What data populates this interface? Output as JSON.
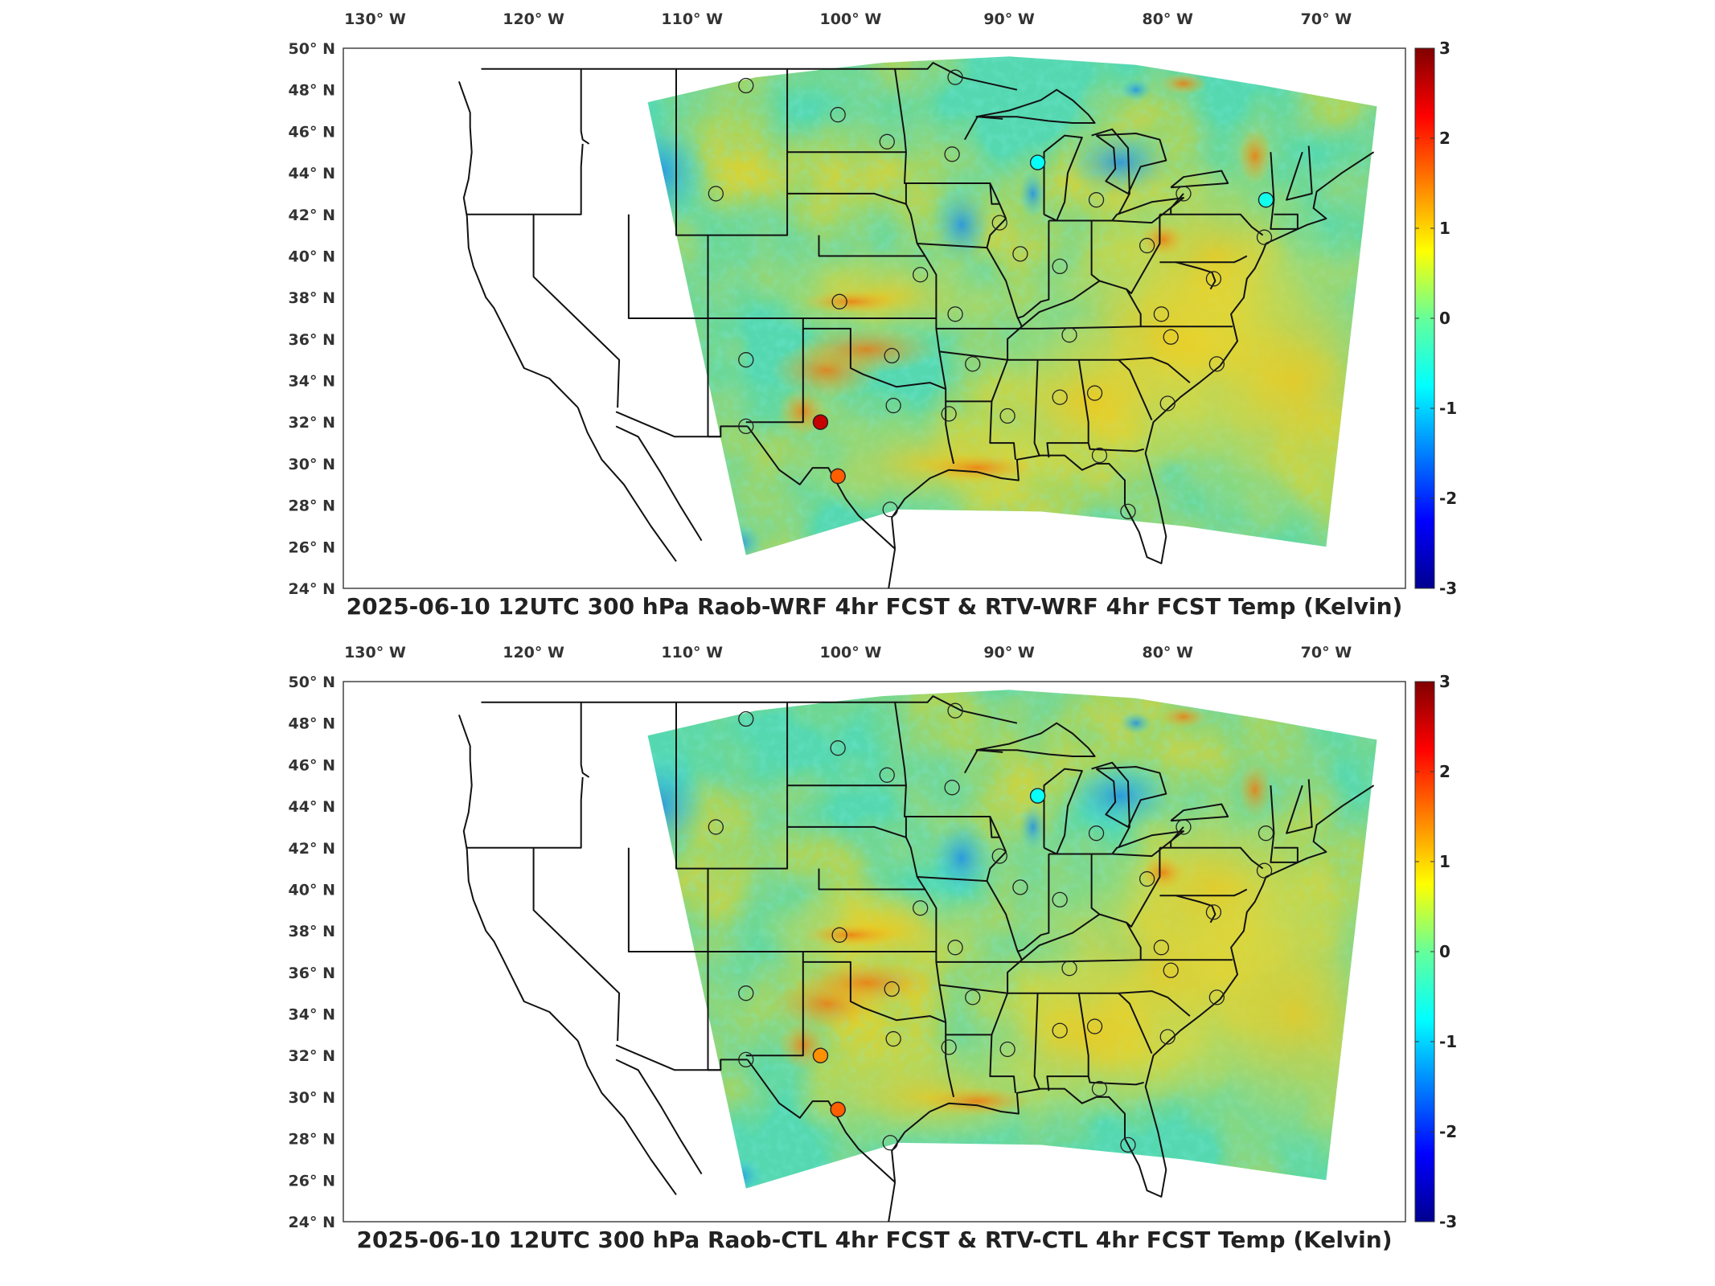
{
  "panels": [
    {
      "title": "2025-06-10 12UTC 300 hPa Raob-WRF 4hr FCST & RTV-WRF 4hr FCST Temp (Kelvin)",
      "lon_labels": [
        "130",
        "120",
        "110",
        "100",
        "90",
        "80",
        "70"
      ],
      "lat_labels": [
        "50",
        "48",
        "46",
        "44",
        "42",
        "40",
        "38",
        "36",
        "34",
        "32",
        "30",
        "28",
        "26",
        "24"
      ],
      "colorbar_ticks": [
        "3",
        "2",
        "1",
        "0",
        "-1",
        "-2",
        "-3"
      ],
      "highlight_stations": [
        {
          "lon": -101.9,
          "lat": 32.0,
          "value": 2.6
        },
        {
          "lon": -100.8,
          "lat": 29.4,
          "value": 1.7
        },
        {
          "lon": -88.2,
          "lat": 44.5,
          "value": -0.7
        },
        {
          "lon": -73.8,
          "lat": 42.7,
          "value": -0.6
        }
      ]
    },
    {
      "title": "2025-06-10 12UTC 300 hPa Raob-CTL 4hr FCST & RTV-CTL 4hr FCST Temp (Kelvin)",
      "lon_labels": [
        "130",
        "120",
        "110",
        "100",
        "90",
        "80",
        "70"
      ],
      "lat_labels": [
        "50",
        "48",
        "46",
        "44",
        "42",
        "40",
        "38",
        "36",
        "34",
        "32",
        "30",
        "28",
        "26",
        "24"
      ],
      "colorbar_ticks": [
        "3",
        "2",
        "1",
        "0",
        "-1",
        "-2",
        "-3"
      ],
      "highlight_stations": [
        {
          "lon": -101.9,
          "lat": 32.0,
          "value": 1.4
        },
        {
          "lon": -100.8,
          "lat": 29.4,
          "value": 1.7
        },
        {
          "lon": -88.2,
          "lat": 44.5,
          "value": -0.7
        }
      ]
    }
  ],
  "stations": [
    {
      "lon": -106.6,
      "lat": 48.2
    },
    {
      "lon": -93.4,
      "lat": 48.6
    },
    {
      "lon": -100.8,
      "lat": 46.8
    },
    {
      "lon": -97.7,
      "lat": 45.5
    },
    {
      "lon": -93.6,
      "lat": 44.9
    },
    {
      "lon": -88.2,
      "lat": 44.5
    },
    {
      "lon": -108.5,
      "lat": 43.0
    },
    {
      "lon": -84.5,
      "lat": 42.7
    },
    {
      "lon": -79.0,
      "lat": 43.0
    },
    {
      "lon": -73.8,
      "lat": 42.7
    },
    {
      "lon": -90.6,
      "lat": 41.6
    },
    {
      "lon": -89.3,
      "lat": 40.1
    },
    {
      "lon": -81.3,
      "lat": 40.5
    },
    {
      "lon": -86.8,
      "lat": 39.5
    },
    {
      "lon": -95.6,
      "lat": 39.1
    },
    {
      "lon": -100.7,
      "lat": 37.8
    },
    {
      "lon": -93.4,
      "lat": 37.2
    },
    {
      "lon": -86.2,
      "lat": 36.2
    },
    {
      "lon": -80.4,
      "lat": 37.2
    },
    {
      "lon": -77.1,
      "lat": 38.9
    },
    {
      "lon": -79.8,
      "lat": 36.1
    },
    {
      "lon": -106.6,
      "lat": 35.0
    },
    {
      "lon": -97.4,
      "lat": 35.2
    },
    {
      "lon": -92.3,
      "lat": 34.8
    },
    {
      "lon": -76.9,
      "lat": 34.8
    },
    {
      "lon": -84.6,
      "lat": 33.4
    },
    {
      "lon": -97.3,
      "lat": 32.8
    },
    {
      "lon": -86.8,
      "lat": 33.2
    },
    {
      "lon": -93.8,
      "lat": 32.4
    },
    {
      "lon": -90.1,
      "lat": 32.3
    },
    {
      "lon": -80.0,
      "lat": 32.9
    },
    {
      "lon": -106.6,
      "lat": 31.8
    },
    {
      "lon": -101.9,
      "lat": 32.0
    },
    {
      "lon": -100.8,
      "lat": 29.4
    },
    {
      "lon": -97.5,
      "lat": 27.8
    },
    {
      "lon": -84.3,
      "lat": 30.4
    },
    {
      "lon": -82.5,
      "lat": 27.7
    },
    {
      "lon": -73.9,
      "lat": 40.9
    }
  ]
}
